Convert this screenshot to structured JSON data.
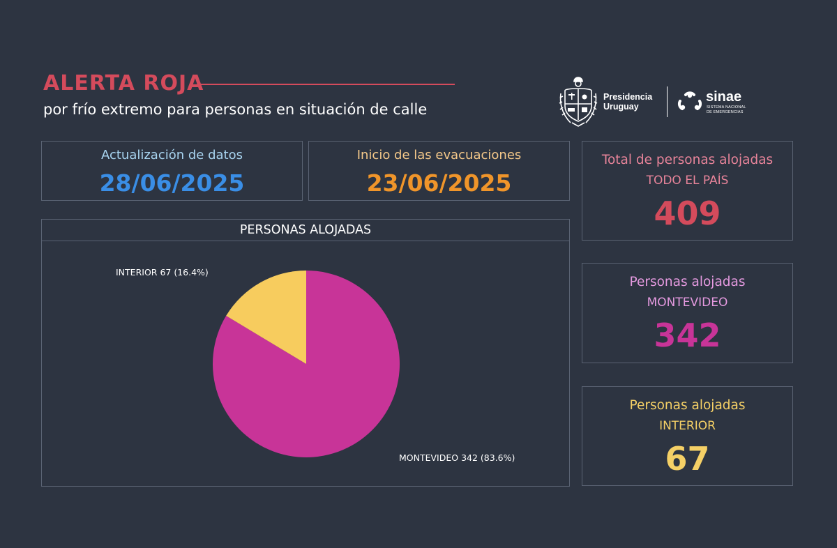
{
  "header": {
    "title": "ALERTA ROJA",
    "subtitle": "por frío extremo para personas en situación de calle",
    "accent_color": "#d44b5c"
  },
  "logos": {
    "presidencia": [
      "Presidencia",
      "Uruguay"
    ],
    "sinae_name": "sinae",
    "sinae_subtitle": [
      "SISTEMA NACIONAL",
      "DE EMERGENCIAS"
    ]
  },
  "dates": {
    "update": {
      "label": "Actualización de datos",
      "value": "28/06/2025",
      "label_color": "#a8d4f0",
      "value_color": "#3a8ee6"
    },
    "start": {
      "label": "Inicio de las evacuaciones",
      "value": "23/06/2025",
      "label_color": "#f5c98a",
      "value_color": "#f0952a"
    }
  },
  "stats": {
    "total": {
      "label": "Total de personas alojadas",
      "sub": "TODO EL PAÍS",
      "value": "409",
      "label_color": "#e8849a",
      "value_color": "#d44b5c"
    },
    "montevideo": {
      "label": "Personas alojadas",
      "sub": "MONTEVIDEO",
      "value": "342",
      "label_color": "#e59ae0",
      "value_color": "#c83498"
    },
    "interior": {
      "label": "Personas alojadas",
      "sub": "INTERIOR",
      "value": "67",
      "label_color": "#f5d066",
      "value_color": "#f5d066"
    }
  },
  "chart_data": {
    "type": "pie",
    "title": "PERSONAS ALOJADAS",
    "slices": [
      {
        "name": "MONTEVIDEO",
        "value": 342,
        "percent": 83.6,
        "label": "MONTEVIDEO 342 (83.6%)",
        "color": "#c83498"
      },
      {
        "name": "INTERIOR",
        "value": 67,
        "percent": 16.4,
        "label": "INTERIOR 67 (16.4%)",
        "color": "#f7cc5e"
      }
    ],
    "start_angle_degrees": 0,
    "direction": "clockwise"
  }
}
